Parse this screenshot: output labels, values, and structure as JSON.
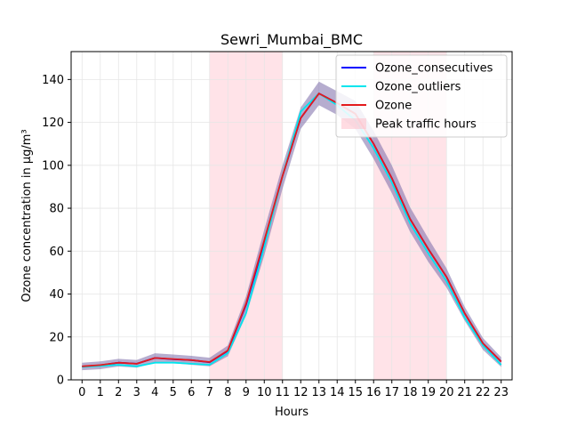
{
  "chart_data": {
    "type": "line",
    "title": "Sewri_Mumbai_BMC",
    "xlabel": "Hours",
    "ylabel": "Ozone concentration in µg/m³",
    "xlim": [
      -0.6,
      23.6
    ],
    "ylim": [
      0,
      153
    ],
    "xticks": [
      0,
      1,
      2,
      3,
      4,
      5,
      6,
      7,
      8,
      9,
      10,
      11,
      12,
      13,
      14,
      15,
      16,
      17,
      18,
      19,
      20,
      21,
      22,
      23
    ],
    "yticks": [
      0,
      20,
      40,
      60,
      80,
      100,
      120,
      140
    ],
    "grid": true,
    "legend_position": "top-right",
    "x": [
      0,
      1,
      2,
      3,
      4,
      5,
      6,
      7,
      8,
      9,
      10,
      11,
      12,
      13,
      14,
      15,
      16,
      17,
      18,
      19,
      20,
      21,
      22,
      23
    ],
    "series": [
      {
        "name": "Ozone_consecutives",
        "color": "#0000ff",
        "values": [
          6.2,
          6.8,
          8.0,
          7.5,
          10.2,
          9.6,
          9.2,
          8.2,
          13.5,
          35.0,
          64.0,
          95.0,
          122.0,
          133.5,
          129.0,
          124.0,
          110.0,
          94.0,
          75.0,
          61.0,
          48.0,
          31.0,
          17.0,
          8.5
        ]
      },
      {
        "name": "Ozone_outliers",
        "color": "#00e5ee",
        "values": [
          6.0,
          6.5,
          7.0,
          6.3,
          8.0,
          8.0,
          7.5,
          7.0,
          12.5,
          31.0,
          62.0,
          95.0,
          125.0,
          133.5,
          128.0,
          121.0,
          108.0,
          92.0,
          73.0,
          59.0,
          46.0,
          29.0,
          16.0,
          7.0
        ]
      },
      {
        "name": "Ozone",
        "color": "#e31a1c",
        "values": [
          6.3,
          6.9,
          8.0,
          7.5,
          10.2,
          9.7,
          9.2,
          8.3,
          13.7,
          35.5,
          65.0,
          95.0,
          122.0,
          133.5,
          129.0,
          124.0,
          110.0,
          94.0,
          75.0,
          61.0,
          48.0,
          31.0,
          17.0,
          8.5
        ]
      }
    ],
    "confidence_band": {
      "color": "#7a6aa8",
      "lower": [
        4.5,
        5.0,
        6.2,
        5.7,
        8.0,
        7.8,
        7.0,
        6.3,
        11.0,
        30.0,
        58.0,
        89.0,
        117.0,
        128.0,
        123.5,
        117.0,
        103.0,
        87.0,
        69.0,
        55.0,
        43.0,
        27.5,
        14.0,
        6.0
      ],
      "upper": [
        8.0,
        8.6,
        9.8,
        9.3,
        12.4,
        11.8,
        11.2,
        10.3,
        16.0,
        39.0,
        70.0,
        100.0,
        127.0,
        139.0,
        134.5,
        130.0,
        116.0,
        100.0,
        80.5,
        66.0,
        52.0,
        34.0,
        19.5,
        10.5
      ]
    },
    "shaded_regions": [
      {
        "name": "Peak traffic hours",
        "color": "#ffc0cb",
        "from": 7,
        "to": 11
      },
      {
        "from": 16,
        "to": 20
      }
    ],
    "legend": [
      "Ozone_consecutives",
      "Ozone_outliers",
      "Ozone",
      "Peak traffic hours"
    ]
  }
}
